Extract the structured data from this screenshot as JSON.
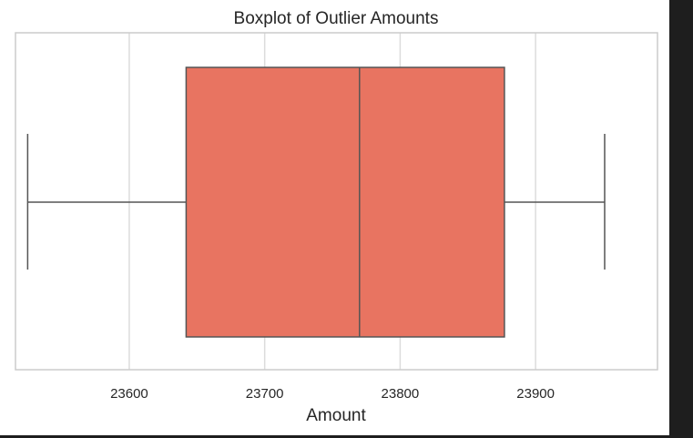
{
  "chart_data": {
    "type": "boxplot",
    "title": "Boxplot of Outlier Amounts",
    "xlabel": "Amount",
    "ylabel": "",
    "orientation": "horizontal",
    "xlim": [
      23516,
      23990
    ],
    "xticks": [
      23600,
      23700,
      23800,
      23900
    ],
    "xtick_labels": [
      "23600",
      "23700",
      "23800",
      "23900"
    ],
    "grid": true,
    "box": {
      "whisker_low": 23525,
      "q1": 23642,
      "median": 23770,
      "q3": 23877,
      "whisker_high": 23951
    },
    "colors": {
      "box_fill": "#e87461",
      "line": "#555555",
      "grid": "#dcdcdc",
      "spine": "#cccccc"
    }
  }
}
